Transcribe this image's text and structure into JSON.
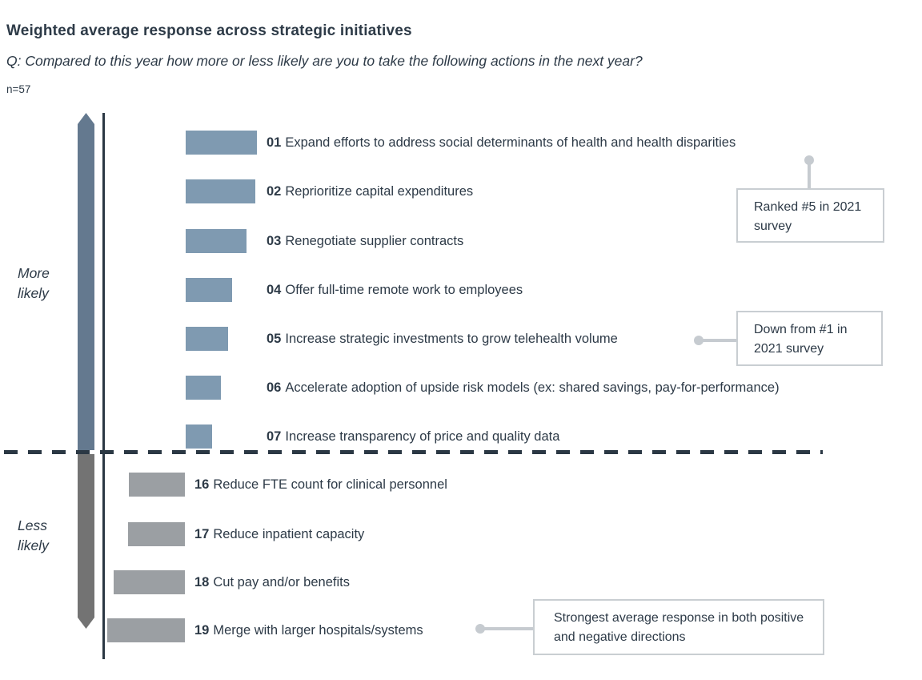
{
  "header": {
    "title": "Weighted average response across strategic initiatives",
    "question": "Q: Compared to this year how more or less likely are you to take the following actions in the next year?",
    "sample_size": "n=57"
  },
  "axis": {
    "positive_label": "More\nlikely",
    "negative_label": "Less\nlikely"
  },
  "chart_data": {
    "type": "bar",
    "orientation": "horizontal-diverging",
    "title": "Weighted average response across strategic initiatives",
    "subtitle": "Q: Compared to this year how more or less likely are you to take the following actions in the next year?",
    "sample_size": 57,
    "value_axis": "no numeric scale shown; lengths are relative magnitudes (px)",
    "more_likely": [
      {
        "rank": "01",
        "label": "Expand efforts to address social determinants of health and health disparities",
        "length": 89
      },
      {
        "rank": "02",
        "label": "Reprioritize capital expenditures",
        "length": 87
      },
      {
        "rank": "03",
        "label": "Renegotiate supplier contracts",
        "length": 76
      },
      {
        "rank": "04",
        "label": "Offer full-time remote work to employees",
        "length": 58
      },
      {
        "rank": "05",
        "label": "Increase strategic investments to grow telehealth volume",
        "length": 53
      },
      {
        "rank": "06",
        "label": "Accelerate adoption of upside risk models (ex: shared savings, pay-for-performance)",
        "length": 44
      },
      {
        "rank": "07",
        "label": "Increase transparency of price and quality data",
        "length": 33
      }
    ],
    "less_likely": [
      {
        "rank": "16",
        "label": "Reduce FTE count for clinical personnel",
        "length": 70
      },
      {
        "rank": "17",
        "label": "Reduce inpatient capacity",
        "length": 71
      },
      {
        "rank": "18",
        "label": "Cut pay and/or benefits",
        "length": 89
      },
      {
        "rank": "19",
        "label": "Merge with larger hospitals/systems",
        "length": 97
      }
    ],
    "annotations": [
      {
        "text": "Ranked #5 in 2021 survey",
        "target_item": "01"
      },
      {
        "text": "Down from #1 in 2021 survey",
        "target_item": "05"
      },
      {
        "text": "Strongest average response in both positive and negative directions",
        "target_item": "19"
      }
    ],
    "legend": "none",
    "colors": {
      "positive_bar": "#7f9ab1",
      "negative_bar": "#9b9fa3",
      "positive_arrow": "#64798f",
      "negative_arrow": "#737373",
      "axis_and_text": "#2b3844",
      "callout_border": "#c9ced2"
    }
  }
}
